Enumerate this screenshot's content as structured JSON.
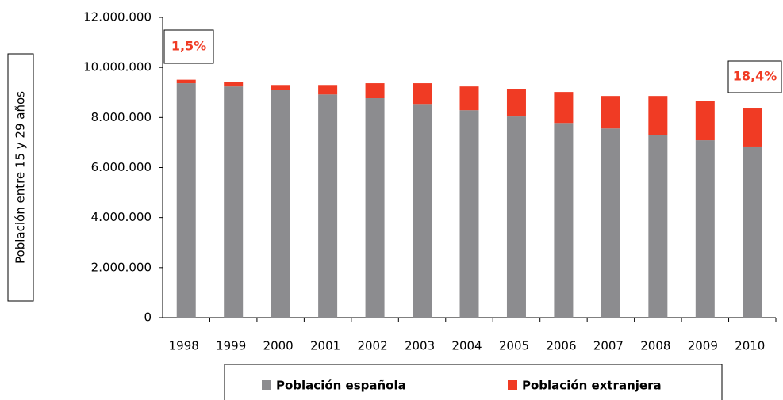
{
  "chart_data": {
    "type": "stacked_bar",
    "y_label": "Población entre 15 y 29 años",
    "categories": [
      "1998",
      "1999",
      "2000",
      "2001",
      "2002",
      "2003",
      "2004",
      "2005",
      "2006",
      "2007",
      "2008",
      "2009",
      "2010"
    ],
    "series": [
      {
        "name": "Población española",
        "color": "#8c8c8f",
        "values": [
          9370000,
          9240000,
          9110000,
          8920000,
          8770000,
          8540000,
          8290000,
          8040000,
          7780000,
          7560000,
          7310000,
          7090000,
          6840000
        ]
      },
      {
        "name": "Población extranjera",
        "color": "#f03b24",
        "values": [
          140000,
          190000,
          190000,
          380000,
          600000,
          830000,
          950000,
          1110000,
          1240000,
          1300000,
          1550000,
          1580000,
          1550000
        ]
      }
    ],
    "ylim": [
      0,
      12000000
    ],
    "yticks": [
      0,
      {
        "value": 2000000,
        "label": "2.000.000"
      },
      {
        "value": 4000000,
        "label": "4.000.000"
      },
      {
        "value": 6000000,
        "label": "6.000.000"
      },
      {
        "value": 8000000,
        "label": "8.000.000"
      },
      {
        "value": 10000000,
        "label": "10.000.000"
      },
      {
        "value": 12000000,
        "label": "12.000.000"
      }
    ],
    "annotations": [
      {
        "text": "1,5%"
      },
      {
        "text": "18,4%"
      }
    ],
    "legend": "bottom"
  }
}
